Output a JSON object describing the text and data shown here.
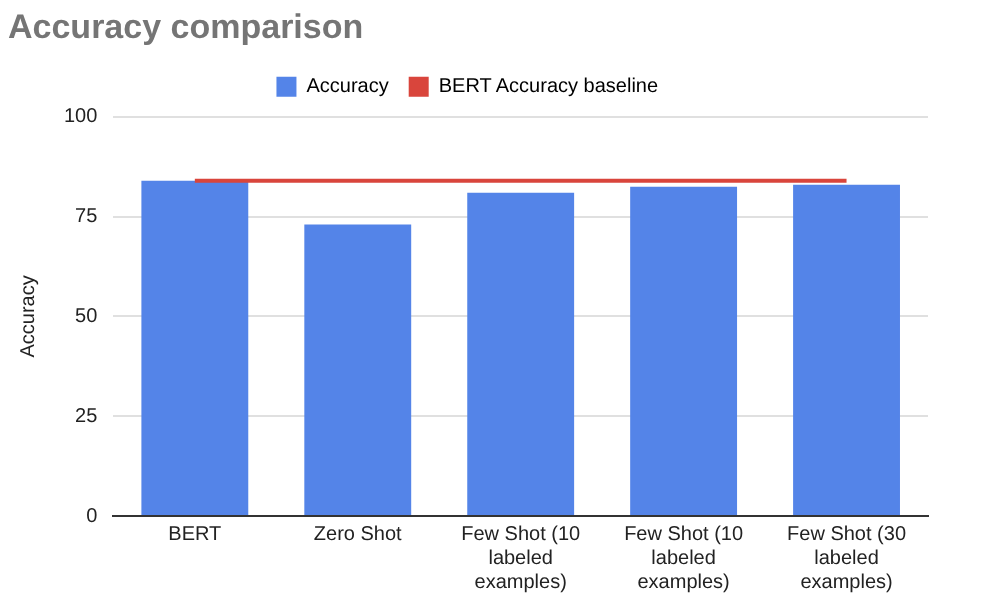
{
  "chart_data": {
    "type": "bar",
    "title": "Accuracy comparison",
    "ylabel": "Accuracy",
    "categories": [
      "BERT",
      "Zero Shot",
      "Few Shot (10 labeled examples)",
      "Few Shot (10 labeled examples)",
      "Few Shot (30 labeled examples)"
    ],
    "series": [
      {
        "name": "Accuracy",
        "color": "#5484e8",
        "values": [
          84,
          73,
          81,
          82.5,
          83
        ]
      },
      {
        "name": "BERT Accuracy baseline",
        "type": "line",
        "color": "#d9453c",
        "values": [
          84,
          84,
          84,
          84,
          84
        ]
      }
    ],
    "ylim": [
      0,
      100
    ],
    "yticks": [
      0,
      25,
      50,
      75,
      100
    ],
    "grid": "y",
    "legend": "top"
  }
}
